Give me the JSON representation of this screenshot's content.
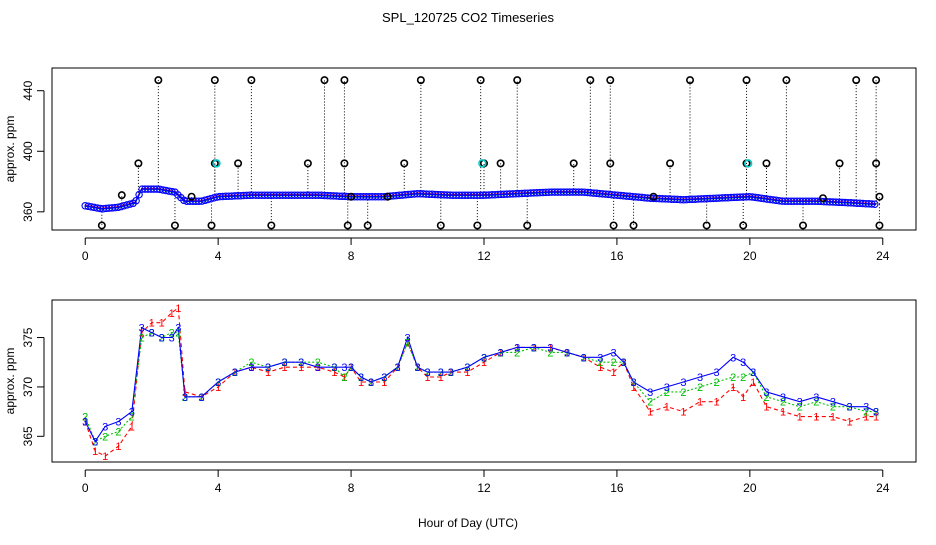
{
  "chart_data": [
    {
      "type": "scatter",
      "title": "SPL_120725  CO2 Timeseries",
      "xlabel": "",
      "ylabel": "approx. ppm",
      "xlim": [
        -1,
        25
      ],
      "ylim": [
        348,
        455
      ],
      "x_ticks": [
        0,
        4,
        8,
        12,
        16,
        20,
        24
      ],
      "y_ticks": [
        360,
        400,
        440
      ],
      "baseline": {
        "x": [
          0,
          0.5,
          1,
          1.5,
          1.7,
          2.2,
          2.7,
          3.0,
          3.5,
          4.0,
          5,
          6,
          7,
          8,
          9,
          10,
          11,
          12,
          13,
          14,
          15,
          16,
          17,
          18,
          19,
          20,
          21,
          22,
          23,
          23.8
        ],
        "y": [
          364,
          362,
          363,
          366,
          375,
          375,
          373,
          367,
          367,
          370,
          371,
          371,
          371,
          370,
          370,
          372,
          371,
          371,
          372,
          373,
          373,
          371,
          369,
          368,
          369,
          370,
          367,
          367,
          366,
          365
        ]
      },
      "spikes_high": {
        "x": [
          2.2,
          3.9,
          5.0,
          7.2,
          7.8,
          10.1,
          11.9,
          13.0,
          15.2,
          15.8,
          18.2,
          19.9,
          21.1,
          23.2,
          23.8
        ],
        "y": [
          447,
          447,
          447,
          447,
          447,
          447,
          447,
          447,
          447,
          447,
          447,
          447,
          447,
          447,
          447
        ]
      },
      "spikes_mid": {
        "x": [
          1.6,
          3.9,
          4.6,
          6.7,
          7.8,
          9.6,
          12.0,
          12.5,
          14.7,
          15.8,
          17.6,
          19.9,
          20.5,
          22.7,
          23.8
        ],
        "y": [
          392,
          392,
          392,
          392,
          392,
          392,
          392,
          392,
          392,
          392,
          392,
          392,
          392,
          392,
          392
        ]
      },
      "spikes_low": {
        "x": [
          0.5,
          2.7,
          3.8,
          5.6,
          7.9,
          8.5,
          10.7,
          11.8,
          13.3,
          15.9,
          16.5,
          18.7,
          19.8,
          21.6,
          23.9
        ],
        "y": [
          351,
          351,
          351,
          351,
          351,
          351,
          351,
          351,
          351,
          351,
          351,
          351,
          351,
          351,
          351
        ]
      },
      "spikes_near": {
        "x": [
          1.1,
          3.2,
          8.0,
          9.1,
          17.1,
          22.2,
          23.9
        ],
        "y": [
          371,
          370,
          370,
          370,
          370,
          369,
          370
        ]
      }
    },
    {
      "type": "scatter",
      "title": "",
      "xlabel": "Hour of Day (UTC)",
      "ylabel": "approx. ppm",
      "xlim": [
        -1,
        25
      ],
      "ylim": [
        362.4,
        378.8
      ],
      "x_ticks": [
        0,
        4,
        8,
        12,
        16,
        20,
        24
      ],
      "y_ticks": [
        365,
        370,
        375
      ],
      "series": [
        {
          "name": "1",
          "color": "#ff0000",
          "x": [
            0,
            0.3,
            0.6,
            1.0,
            1.4,
            1.7,
            2.0,
            2.3,
            2.6,
            2.8,
            3.0,
            3.5,
            4.0,
            4.5,
            5.0,
            5.5,
            6.0,
            6.5,
            7.0,
            7.5,
            7.8,
            8.0,
            8.3,
            8.6,
            9.0,
            9.4,
            9.7,
            10.0,
            10.3,
            10.7,
            11.0,
            11.5,
            12.0,
            12.5,
            13.0,
            13.5,
            14.0,
            14.5,
            15.0,
            15.5,
            15.9,
            16.2,
            16.5,
            17.0,
            17.5,
            18.0,
            18.5,
            19.0,
            19.5,
            19.8,
            20.1,
            20.5,
            21.0,
            21.5,
            22.0,
            22.5,
            23.0,
            23.5,
            23.8
          ],
          "y": [
            366.5,
            363.5,
            363.0,
            364.0,
            366.0,
            375.5,
            376.5,
            376.5,
            377.5,
            378.0,
            369.5,
            369.0,
            370.0,
            371.5,
            372.0,
            371.5,
            372.0,
            372.0,
            372.0,
            371.5,
            371.0,
            372.0,
            370.5,
            370.5,
            370.5,
            372.0,
            374.5,
            372.0,
            371.0,
            371.0,
            371.5,
            371.5,
            372.5,
            373.5,
            374.0,
            374.0,
            374.0,
            373.5,
            373.0,
            372.0,
            371.5,
            372.5,
            370.0,
            367.5,
            368.0,
            367.5,
            368.5,
            368.5,
            370.0,
            369.0,
            370.5,
            368.0,
            367.5,
            367.0,
            367.0,
            367.0,
            366.5,
            367.0,
            367.0
          ]
        },
        {
          "name": "2",
          "color": "#00c000",
          "x": [
            0,
            0.3,
            0.6,
            1.0,
            1.4,
            1.7,
            2.0,
            2.3,
            2.6,
            2.8,
            3.0,
            3.5,
            4.0,
            4.5,
            5.0,
            5.5,
            6.0,
            6.5,
            7.0,
            7.5,
            7.8,
            8.0,
            8.3,
            8.6,
            9.0,
            9.4,
            9.7,
            10.0,
            10.3,
            10.7,
            11.0,
            11.5,
            12.0,
            12.5,
            13.0,
            13.5,
            14.0,
            14.5,
            15.0,
            15.5,
            15.9,
            16.2,
            16.5,
            17.0,
            17.5,
            18.0,
            18.5,
            19.0,
            19.5,
            19.8,
            20.1,
            20.5,
            21.0,
            21.5,
            22.0,
            22.5,
            23.0,
            23.5,
            23.8
          ],
          "y": [
            367.0,
            364.5,
            365.0,
            365.5,
            367.0,
            375.0,
            375.5,
            375.0,
            375.5,
            375.5,
            369.0,
            369.0,
            370.5,
            371.5,
            372.5,
            372.0,
            372.5,
            372.5,
            372.5,
            372.0,
            371.0,
            372.0,
            371.0,
            370.5,
            371.0,
            372.0,
            374.5,
            372.0,
            371.5,
            371.5,
            371.5,
            372.0,
            373.0,
            373.5,
            373.5,
            374.0,
            373.5,
            373.5,
            373.0,
            372.5,
            372.5,
            372.5,
            370.5,
            368.5,
            369.5,
            369.5,
            370.0,
            370.5,
            371.0,
            371.0,
            371.5,
            369.0,
            368.5,
            368.0,
            368.5,
            368.0,
            368.0,
            367.5,
            367.5
          ]
        },
        {
          "name": "3",
          "color": "#0000ff",
          "x": [
            0,
            0.3,
            0.6,
            1.0,
            1.4,
            1.7,
            2.0,
            2.3,
            2.6,
            2.8,
            3.0,
            3.5,
            4.0,
            4.5,
            5.0,
            5.5,
            6.0,
            6.5,
            7.0,
            7.5,
            7.8,
            8.0,
            8.3,
            8.6,
            9.0,
            9.4,
            9.7,
            10.0,
            10.3,
            10.7,
            11.0,
            11.5,
            12.0,
            12.5,
            13.0,
            13.5,
            14.0,
            14.5,
            15.0,
            15.5,
            15.9,
            16.2,
            16.5,
            17.0,
            17.5,
            18.0,
            18.5,
            19.0,
            19.5,
            19.8,
            20.1,
            20.5,
            21.0,
            21.5,
            22.0,
            22.5,
            23.0,
            23.5,
            23.8
          ],
          "y": [
            366.5,
            364.5,
            366.0,
            366.5,
            367.5,
            376.0,
            375.5,
            375.0,
            375.0,
            376.0,
            369.0,
            369.0,
            370.5,
            371.5,
            372.0,
            372.0,
            372.5,
            372.5,
            372.0,
            372.0,
            372.0,
            372.0,
            371.0,
            370.5,
            371.0,
            372.0,
            375.0,
            372.0,
            371.5,
            371.5,
            371.5,
            372.0,
            373.0,
            373.5,
            374.0,
            374.0,
            374.0,
            373.5,
            373.0,
            373.0,
            373.5,
            372.5,
            370.5,
            369.5,
            370.0,
            370.5,
            371.0,
            371.5,
            373.0,
            372.5,
            371.5,
            369.5,
            369.0,
            368.5,
            369.0,
            368.5,
            368.0,
            368.0,
            367.5
          ]
        }
      ]
    }
  ]
}
